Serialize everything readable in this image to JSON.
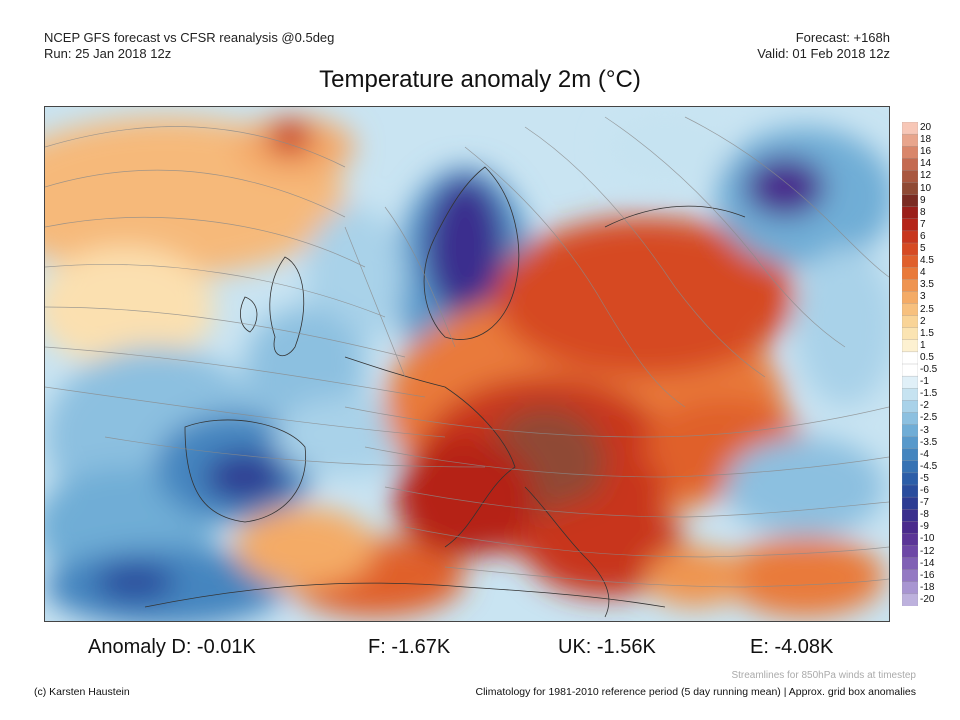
{
  "header": {
    "model_line": "NCEP GFS forecast vs CFSR reanalysis @0.5deg",
    "run_line": "Run: 25 Jan 2018 12z",
    "forecast_line": "Forecast: +168h",
    "valid_line": "Valid: 01 Feb 2018 12z"
  },
  "title": "Temperature anomaly 2m (°C)",
  "legend": {
    "labels": [
      "20",
      "18",
      "16",
      "14",
      "12",
      "10",
      "9",
      "8",
      "7",
      "6",
      "5",
      "4.5",
      "4",
      "3.5",
      "3",
      "2.5",
      "2",
      "1.5",
      "1",
      "0.5",
      "-0.5",
      "-1",
      "-1.5",
      "-2",
      "-2.5",
      "-3",
      "-3.5",
      "-4",
      "-4.5",
      "-5",
      "-6",
      "-7",
      "-8",
      "-9",
      "-10",
      "-12",
      "-14",
      "-16",
      "-18",
      "-20"
    ],
    "colors": [
      "#f7c7b7",
      "#e8a58c",
      "#d9866a",
      "#c46a50",
      "#a9573f",
      "#8f4a34",
      "#7a2b22",
      "#9a1f1a",
      "#b52418",
      "#c8361e",
      "#d64a23",
      "#e0602c",
      "#e97a3a",
      "#ef9450",
      "#f4ab66",
      "#f7c07e",
      "#f9d497",
      "#fbe4b2",
      "#fdf1d1",
      "#ffffff",
      "#ffffff",
      "#e0f0f8",
      "#c6e3f1",
      "#a9d2e9",
      "#8cc0e0",
      "#70add6",
      "#5899cb",
      "#4485bf",
      "#3672b3",
      "#2c5ea8",
      "#2a4d9d",
      "#2d3c93",
      "#3a2f8e",
      "#4a2a8c",
      "#5b3597",
      "#6d47a6",
      "#8060b5",
      "#9479c3",
      "#a895d1",
      "#bdb1dd"
    ]
  },
  "anomalies": [
    {
      "label": "Anomaly D: -0.01K"
    },
    {
      "label": "F: -1.67K"
    },
    {
      "label": "UK: -1.56K"
    },
    {
      "label": "E: -4.08K"
    }
  ],
  "footer": {
    "stream_note": "Streamlines for 850hPa winds at timestep",
    "credit": "(c) Karsten Haustein",
    "climatology": "Climatology for 1981-2010 reference period (5 day running mean) | Approx. grid box anomalies"
  }
}
